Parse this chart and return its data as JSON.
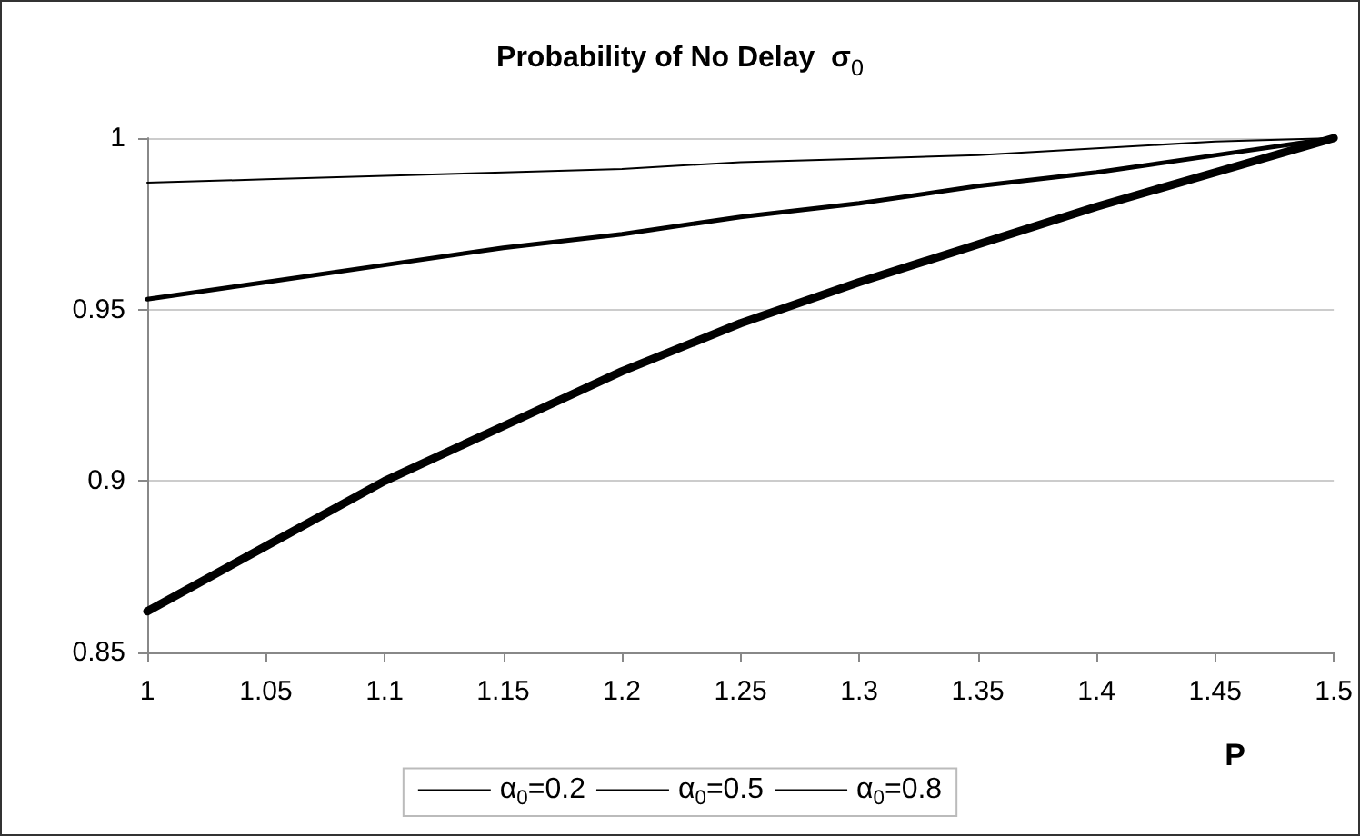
{
  "chart_data": {
    "type": "line",
    "title": "Probability of No Delay  σ$_{0}$",
    "xlabel": "P",
    "x": [
      1,
      1.05,
      1.1,
      1.15,
      1.2,
      1.25,
      1.3,
      1.35,
      1.4,
      1.45,
      1.5
    ],
    "series": [
      {
        "name": "α$_{0}$=0.2",
        "color": "#000000",
        "values": [
          0.987,
          0.988,
          0.989,
          0.99,
          0.991,
          0.993,
          0.994,
          0.995,
          0.997,
          0.999,
          1
        ]
      },
      {
        "name": "α$_{0}$=0.5",
        "color": "#000000",
        "values": [
          0.953,
          0.958,
          0.963,
          0.968,
          0.972,
          0.977,
          0.981,
          0.986,
          0.99,
          0.995,
          1
        ]
      },
      {
        "name": "α$_{0}$=0.8",
        "color": "#000000",
        "values": [
          0.862,
          0.881,
          0.9,
          0.916,
          0.932,
          0.946,
          0.958,
          0.969,
          0.98,
          0.99,
          1
        ]
      }
    ],
    "xlim": [
      1,
      1.5
    ],
    "xticks": [
      1,
      1.05,
      1.1,
      1.15,
      1.2,
      1.25,
      1.3,
      1.35,
      1.4,
      1.45,
      1.5
    ],
    "ylim": [
      0.85,
      1
    ],
    "yticks": [
      0.85,
      0.9,
      0.95,
      1
    ],
    "grid": "y",
    "legend": "bottom",
    "marker": "none",
    "line_style": "solid"
  }
}
